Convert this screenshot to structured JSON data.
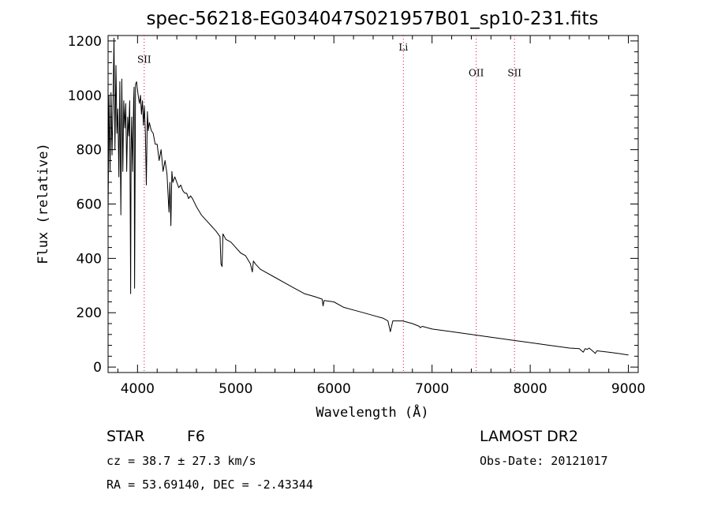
{
  "chart_data": {
    "type": "line",
    "title": "spec-56218-EG034047S021957B01_sp10-231.fits",
    "xlabel": "Wavelength (Å)",
    "ylabel": "Flux (relative)",
    "xlim": [
      3700,
      9100
    ],
    "ylim": [
      -20,
      1220
    ],
    "xticks": [
      4000,
      5000,
      6000,
      7000,
      8000,
      9000
    ],
    "yticks": [
      0,
      200,
      400,
      600,
      800,
      1000,
      1200
    ],
    "series": [
      {
        "x": [
          3700,
          3710,
          3720,
          3730,
          3740,
          3750,
          3760,
          3770,
          3780,
          3790,
          3800,
          3810,
          3820,
          3830,
          3840,
          3850,
          3860,
          3870,
          3880,
          3890,
          3900,
          3910,
          3920,
          3930,
          3935,
          3940,
          3950,
          3960,
          3965,
          3970,
          3980,
          3990,
          4000,
          4010,
          4020,
          4030,
          4040,
          4050,
          4060,
          4070,
          4080,
          4090,
          4100,
          4110,
          4120,
          4140,
          4160,
          4180,
          4200,
          4220,
          4240,
          4260,
          4280,
          4300,
          4320,
          4330,
          4340,
          4350,
          4360,
          4380,
          4400,
          4420,
          4440,
          4460,
          4480,
          4500,
          4520,
          4540,
          4560,
          4600,
          4650,
          4700,
          4750,
          4800,
          4840,
          4850,
          4861,
          4870,
          4900,
          4950,
          5000,
          5050,
          5100,
          5150,
          5170,
          5180,
          5200,
          5250,
          5300,
          5400,
          5500,
          5600,
          5700,
          5800,
          5880,
          5890,
          5900,
          6000,
          6100,
          6200,
          6300,
          6400,
          6500,
          6550,
          6563,
          6575,
          6600,
          6700,
          6800,
          6870,
          6880,
          6900,
          7000,
          7200,
          7400,
          7600,
          7700,
          7800,
          8000,
          8200,
          8400,
          8500,
          8540,
          8560,
          8580,
          8600,
          8650,
          8662,
          8680,
          8800,
          8900,
          8990,
          9000
        ],
        "values": [
          560,
          1000,
          720,
          1010,
          780,
          960,
          1210,
          800,
          1110,
          860,
          950,
          700,
          1050,
          560,
          1060,
          720,
          980,
          880,
          970,
          720,
          920,
          850,
          980,
          270,
          800,
          920,
          720,
          980,
          1030,
          290,
          1040,
          1050,
          1020,
          990,
          970,
          1000,
          930,
          980,
          890,
          960,
          860,
          670,
          940,
          870,
          900,
          870,
          860,
          820,
          820,
          760,
          800,
          720,
          760,
          710,
          570,
          680,
          520,
          720,
          680,
          700,
          680,
          660,
          670,
          650,
          640,
          640,
          620,
          630,
          620,
          590,
          560,
          540,
          520,
          500,
          480,
          380,
          370,
          490,
          470,
          460,
          440,
          420,
          410,
          380,
          350,
          390,
          380,
          360,
          350,
          330,
          310,
          290,
          270,
          260,
          250,
          225,
          245,
          240,
          220,
          210,
          200,
          190,
          180,
          170,
          150,
          130,
          170,
          170,
          160,
          150,
          145,
          150,
          140,
          130,
          120,
          110,
          105,
          100,
          90,
          80,
          70,
          68,
          55,
          68,
          65,
          70,
          55,
          50,
          60,
          55,
          50,
          45,
          45
        ]
      }
    ],
    "lines": [
      {
        "x": 4068,
        "label": "SII",
        "label_y": 1120
      },
      {
        "x": 6708,
        "label": "Li",
        "label_y": 1165
      },
      {
        "x": 7450,
        "label": "OII",
        "label_y": 1070
      },
      {
        "x": 7840,
        "label": "SII",
        "label_y": 1070
      }
    ],
    "line_color": "#e8003c",
    "grid": false
  },
  "info": {
    "object_class": "STAR",
    "subclass": "F6",
    "survey": "LAMOST DR2",
    "cz": "cz = 38.7 ± 27.3 km/s",
    "obs_date": "Obs-Date: 20121017",
    "coords": "RA =  53.69140, DEC =  -2.43344"
  }
}
